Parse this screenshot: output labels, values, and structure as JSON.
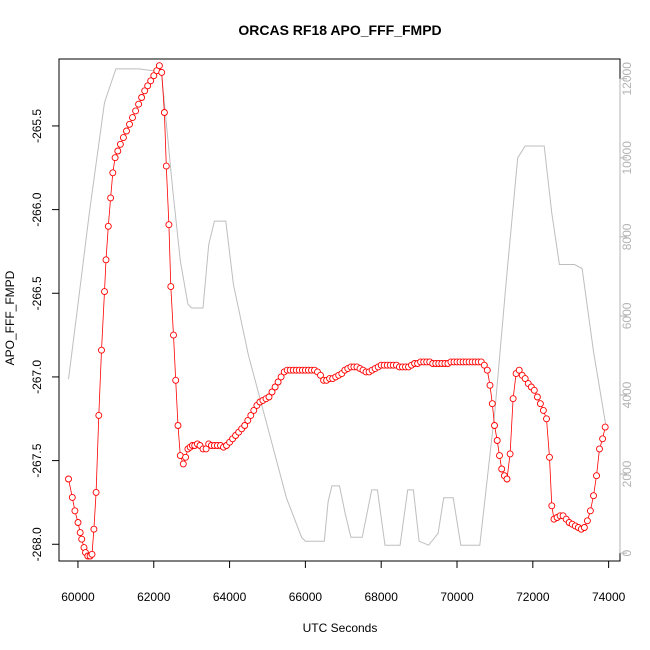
{
  "chart_data": {
    "type": "scatter",
    "title": "ORCAS RF18 APO_FFF_FMPD",
    "xlabel": "UTC Seconds",
    "ylabel": "APO_FFF_FMPD",
    "xlim": [
      59500,
      74300
    ],
    "ylim": [
      -268.1,
      -265.1
    ],
    "y2lim": [
      -200,
      12500
    ],
    "x_ticks": [
      60000,
      62000,
      64000,
      66000,
      68000,
      70000,
      72000,
      74000
    ],
    "y_ticks": [
      -268.0,
      -267.5,
      -267.0,
      -266.5,
      -266.0,
      -265.5
    ],
    "y_tick_labels": [
      "-268.0",
      "-267.5",
      "-267.0",
      "-266.5",
      "-266.0",
      "-265.5"
    ],
    "y2_ticks": [
      0,
      2000,
      4000,
      6000,
      8000,
      10000,
      12000
    ],
    "point_color": "#ff0000",
    "line_color": "#ff0000",
    "secondary_color": "#bebebe",
    "grid": false,
    "series": [
      {
        "marker": "open-circle",
        "points": [
          [
            59750,
            -267.61
          ],
          [
            59850,
            -267.72
          ],
          [
            59920,
            -267.8
          ],
          [
            60000,
            -267.87
          ],
          [
            60060,
            -267.93
          ],
          [
            60100,
            -267.97
          ],
          [
            60160,
            -268.02
          ],
          [
            60200,
            -268.05
          ],
          [
            60260,
            -268.07
          ],
          [
            60320,
            -268.07
          ],
          [
            60370,
            -268.06
          ],
          [
            60420,
            -267.91
          ],
          [
            60480,
            -267.69
          ],
          [
            60550,
            -267.23
          ],
          [
            60620,
            -266.84
          ],
          [
            60700,
            -266.49
          ],
          [
            60740,
            -266.3
          ],
          [
            60800,
            -266.1
          ],
          [
            60860,
            -265.93
          ],
          [
            60920,
            -265.78
          ],
          [
            60980,
            -265.69
          ],
          [
            61050,
            -265.65
          ],
          [
            61120,
            -265.61
          ],
          [
            61200,
            -265.57
          ],
          [
            61280,
            -265.53
          ],
          [
            61360,
            -265.49
          ],
          [
            61440,
            -265.45
          ],
          [
            61520,
            -265.41
          ],
          [
            61600,
            -265.37
          ],
          [
            61680,
            -265.33
          ],
          [
            61760,
            -265.29
          ],
          [
            61840,
            -265.26
          ],
          [
            61920,
            -265.23
          ],
          [
            62000,
            -265.2
          ],
          [
            62080,
            -265.17
          ],
          [
            62150,
            -265.14
          ],
          [
            62210,
            -265.18
          ],
          [
            62280,
            -265.42
          ],
          [
            62330,
            -265.74
          ],
          [
            62400,
            -266.09
          ],
          [
            62450,
            -266.46
          ],
          [
            62520,
            -266.75
          ],
          [
            62580,
            -267.02
          ],
          [
            62640,
            -267.29
          ],
          [
            62700,
            -267.47
          ],
          [
            62780,
            -267.52
          ],
          [
            62840,
            -267.48
          ],
          [
            62900,
            -267.43
          ],
          [
            62960,
            -267.42
          ],
          [
            63020,
            -267.41
          ],
          [
            63080,
            -267.41
          ],
          [
            63150,
            -267.4
          ],
          [
            63220,
            -267.41
          ],
          [
            63300,
            -267.43
          ],
          [
            63380,
            -267.43
          ],
          [
            63450,
            -267.4
          ],
          [
            63520,
            -267.41
          ],
          [
            63600,
            -267.41
          ],
          [
            63680,
            -267.41
          ],
          [
            63760,
            -267.41
          ],
          [
            63840,
            -267.42
          ],
          [
            63920,
            -267.41
          ],
          [
            64000,
            -267.39
          ],
          [
            64080,
            -267.37
          ],
          [
            64160,
            -267.35
          ],
          [
            64240,
            -267.33
          ],
          [
            64320,
            -267.31
          ],
          [
            64400,
            -267.29
          ],
          [
            64480,
            -267.26
          ],
          [
            64560,
            -267.23
          ],
          [
            64640,
            -267.2
          ],
          [
            64720,
            -267.17
          ],
          [
            64800,
            -267.15
          ],
          [
            64880,
            -267.14
          ],
          [
            64960,
            -267.13
          ],
          [
            65040,
            -267.12
          ],
          [
            65120,
            -267.09
          ],
          [
            65200,
            -267.06
          ],
          [
            65280,
            -267.03
          ],
          [
            65360,
            -267.0
          ],
          [
            65440,
            -266.97
          ],
          [
            65520,
            -266.96
          ],
          [
            65600,
            -266.96
          ],
          [
            65680,
            -266.96
          ],
          [
            65760,
            -266.96
          ],
          [
            65840,
            -266.96
          ],
          [
            65920,
            -266.96
          ],
          [
            66000,
            -266.96
          ],
          [
            66080,
            -266.96
          ],
          [
            66160,
            -266.96
          ],
          [
            66240,
            -266.96
          ],
          [
            66320,
            -266.97
          ],
          [
            66400,
            -266.99
          ],
          [
            66480,
            -267.02
          ],
          [
            66560,
            -267.02
          ],
          [
            66640,
            -267.01
          ],
          [
            66720,
            -267.01
          ],
          [
            66800,
            -267.0
          ],
          [
            66880,
            -266.99
          ],
          [
            66960,
            -266.98
          ],
          [
            67040,
            -266.96
          ],
          [
            67120,
            -266.95
          ],
          [
            67200,
            -266.94
          ],
          [
            67280,
            -266.94
          ],
          [
            67360,
            -266.94
          ],
          [
            67440,
            -266.95
          ],
          [
            67520,
            -266.96
          ],
          [
            67600,
            -266.97
          ],
          [
            67680,
            -266.97
          ],
          [
            67760,
            -266.96
          ],
          [
            67840,
            -266.95
          ],
          [
            67920,
            -266.94
          ],
          [
            68000,
            -266.93
          ],
          [
            68080,
            -266.93
          ],
          [
            68160,
            -266.93
          ],
          [
            68240,
            -266.93
          ],
          [
            68320,
            -266.93
          ],
          [
            68400,
            -266.93
          ],
          [
            68480,
            -266.94
          ],
          [
            68560,
            -266.94
          ],
          [
            68640,
            -266.94
          ],
          [
            68720,
            -266.94
          ],
          [
            68800,
            -266.93
          ],
          [
            68880,
            -266.92
          ],
          [
            68960,
            -266.92
          ],
          [
            69040,
            -266.91
          ],
          [
            69120,
            -266.91
          ],
          [
            69200,
            -266.91
          ],
          [
            69280,
            -266.91
          ],
          [
            69360,
            -266.92
          ],
          [
            69440,
            -266.92
          ],
          [
            69520,
            -266.92
          ],
          [
            69600,
            -266.92
          ],
          [
            69680,
            -266.92
          ],
          [
            69760,
            -266.92
          ],
          [
            69840,
            -266.91
          ],
          [
            69920,
            -266.91
          ],
          [
            70000,
            -266.91
          ],
          [
            70080,
            -266.91
          ],
          [
            70160,
            -266.91
          ],
          [
            70240,
            -266.91
          ],
          [
            70320,
            -266.91
          ],
          [
            70400,
            -266.91
          ],
          [
            70480,
            -266.91
          ],
          [
            70560,
            -266.91
          ],
          [
            70640,
            -266.91
          ],
          [
            70720,
            -266.93
          ],
          [
            70800,
            -266.96
          ],
          [
            70870,
            -267.05
          ],
          [
            70930,
            -267.16
          ],
          [
            70990,
            -267.29
          ],
          [
            71060,
            -267.38
          ],
          [
            71120,
            -267.47
          ],
          [
            71180,
            -267.55
          ],
          [
            71250,
            -267.59
          ],
          [
            71320,
            -267.61
          ],
          [
            71400,
            -267.46
          ],
          [
            71480,
            -267.13
          ],
          [
            71560,
            -266.98
          ],
          [
            71640,
            -266.96
          ],
          [
            71720,
            -266.99
          ],
          [
            71800,
            -267.01
          ],
          [
            71880,
            -267.04
          ],
          [
            71960,
            -267.06
          ],
          [
            72040,
            -267.08
          ],
          [
            72120,
            -267.12
          ],
          [
            72200,
            -267.16
          ],
          [
            72280,
            -267.2
          ],
          [
            72360,
            -267.25
          ],
          [
            72440,
            -267.48
          ],
          [
            72500,
            -267.77
          ],
          [
            72560,
            -267.85
          ],
          [
            72640,
            -267.84
          ],
          [
            72720,
            -267.83
          ],
          [
            72800,
            -267.83
          ],
          [
            72880,
            -267.85
          ],
          [
            72960,
            -267.87
          ],
          [
            73040,
            -267.88
          ],
          [
            73120,
            -267.89
          ],
          [
            73200,
            -267.9
          ],
          [
            73280,
            -267.91
          ],
          [
            73360,
            -267.9
          ],
          [
            73440,
            -267.86
          ],
          [
            73520,
            -267.8
          ],
          [
            73600,
            -267.71
          ],
          [
            73680,
            -267.59
          ],
          [
            73760,
            -267.43
          ],
          [
            73840,
            -267.37
          ],
          [
            73910,
            -267.3
          ]
        ]
      },
      {
        "axis": "right",
        "line": "solid",
        "points": [
          [
            59750,
            4400
          ],
          [
            60000,
            6300
          ],
          [
            60300,
            8600
          ],
          [
            60500,
            10000
          ],
          [
            60700,
            11400
          ],
          [
            61000,
            12250
          ],
          [
            61600,
            12250
          ],
          [
            62000,
            12200
          ],
          [
            62200,
            12200
          ],
          [
            62500,
            9200
          ],
          [
            62700,
            7400
          ],
          [
            62900,
            6300
          ],
          [
            63000,
            6200
          ],
          [
            63100,
            6200
          ],
          [
            63300,
            6200
          ],
          [
            63450,
            7800
          ],
          [
            63600,
            8400
          ],
          [
            63900,
            8400
          ],
          [
            64100,
            6800
          ],
          [
            64500,
            5000
          ],
          [
            65000,
            3200
          ],
          [
            65500,
            1400
          ],
          [
            65900,
            400
          ],
          [
            66000,
            300
          ],
          [
            66300,
            300
          ],
          [
            66500,
            300
          ],
          [
            66600,
            1300
          ],
          [
            66700,
            1700
          ],
          [
            66900,
            1700
          ],
          [
            67050,
            1000
          ],
          [
            67200,
            400
          ],
          [
            67500,
            400
          ],
          [
            67750,
            1600
          ],
          [
            67900,
            1600
          ],
          [
            68100,
            200
          ],
          [
            68300,
            200
          ],
          [
            68500,
            200
          ],
          [
            68700,
            1600
          ],
          [
            68850,
            1600
          ],
          [
            69000,
            300
          ],
          [
            69250,
            200
          ],
          [
            69500,
            500
          ],
          [
            69650,
            1400
          ],
          [
            69900,
            1400
          ],
          [
            70100,
            200
          ],
          [
            70300,
            200
          ],
          [
            70600,
            200
          ],
          [
            71000,
            3600
          ],
          [
            71300,
            6900
          ],
          [
            71600,
            10000
          ],
          [
            71800,
            10300
          ],
          [
            72300,
            10300
          ],
          [
            72500,
            8600
          ],
          [
            72700,
            7300
          ],
          [
            73100,
            7300
          ],
          [
            73300,
            7200
          ],
          [
            73600,
            5100
          ],
          [
            73950,
            3100
          ]
        ]
      }
    ]
  }
}
